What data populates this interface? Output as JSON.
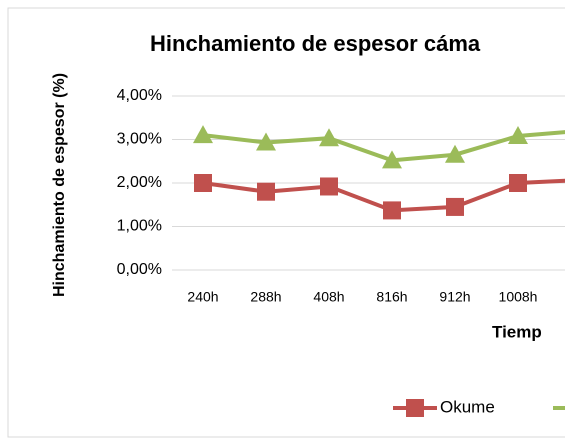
{
  "chart_data": {
    "type": "line",
    "title": "Hinchamiento de espesor cáma",
    "y_label": "Hinchamiento de espesor (%)",
    "x_label": "Tiemp",
    "categories": [
      "240h",
      "288h",
      "408h",
      "816h",
      "912h",
      "1008h",
      null
    ],
    "series": [
      {
        "name": "Okume",
        "color": "#c0504d",
        "marker": "square",
        "values": [
          2.0,
          1.8,
          1.92,
          1.37,
          1.45,
          2.0,
          2.07
        ]
      },
      {
        "name": null,
        "color": "#9bbb59",
        "marker": "triangle",
        "values": [
          3.1,
          2.93,
          3.03,
          2.52,
          2.65,
          3.08,
          3.2
        ]
      }
    ],
    "ylim": [
      0,
      4
    ],
    "yticks": [
      {
        "value": 0,
        "label": "0,00%"
      },
      {
        "value": 1,
        "label": "1,00%"
      },
      {
        "value": 2,
        "label": "2,00%"
      },
      {
        "value": 3,
        "label": "3,00%"
      },
      {
        "value": 4,
        "label": "4,00%"
      }
    ],
    "grid": true,
    "legend": "bottom"
  }
}
